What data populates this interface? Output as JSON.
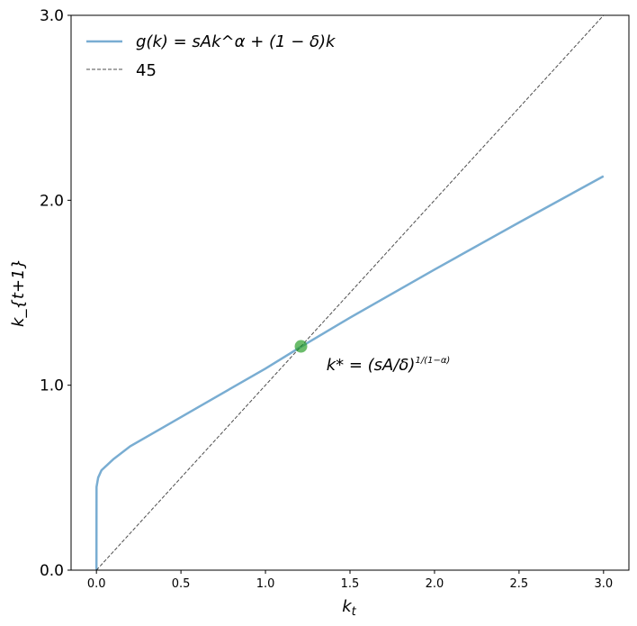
{
  "chart_data": {
    "type": "line",
    "title": "",
    "xlabel": "k_t",
    "ylabel": "k_{t+1}",
    "xlim": [
      -0.15,
      3.15
    ],
    "ylim": [
      0,
      3
    ],
    "grid": false,
    "legend_placement": "top-left",
    "x_ticks": [
      "0.0",
      "0.5",
      "1.0",
      "1.5",
      "2.0",
      "2.5",
      "3.0"
    ],
    "x_tick_values": [
      0,
      0.5,
      1,
      1.5,
      2,
      2.5,
      3
    ],
    "y_ticks": [
      "0.0",
      "1.0",
      "2.0",
      "3.0"
    ],
    "y_tick_values": [
      0,
      1,
      2,
      3
    ],
    "series": [
      {
        "name": "g(k) = sAk^α + (1 − δ)k",
        "color": "#1f77b4",
        "alpha": 0.6,
        "style": "solid",
        "x": [
          0,
          0.0005,
          0.01,
          0.03,
          0.1,
          0.2,
          0.4,
          0.6,
          0.8,
          1.0,
          1.21,
          1.5,
          2.0,
          2.5,
          3.0
        ],
        "y": [
          0,
          0.45,
          0.5,
          0.54,
          0.6,
          0.67,
          0.775,
          0.88,
          0.985,
          1.09,
          1.208,
          1.365,
          1.625,
          1.88,
          2.13
        ]
      },
      {
        "name": "45",
        "color": "#000000",
        "alpha": 0.7,
        "style": "dashed",
        "x": [
          0,
          3
        ],
        "y": [
          0,
          3
        ]
      }
    ],
    "points": [
      {
        "x": 1.21,
        "y": 1.21,
        "color": "#2ca02c",
        "alpha": 0.7
      }
    ],
    "annotations": [
      {
        "text_main": "k* = (sA/δ)",
        "text_exp": "1/(1−α)",
        "x": 1.36,
        "y": 1.08
      }
    ]
  }
}
